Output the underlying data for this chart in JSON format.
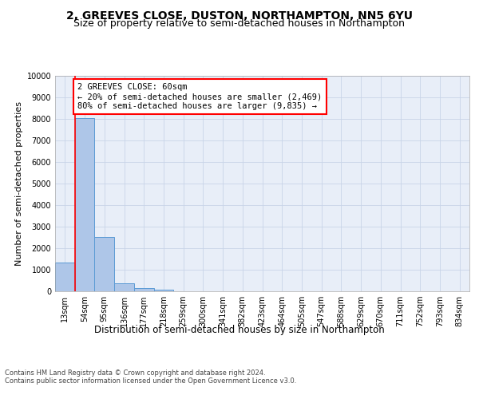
{
  "title": "2, GREEVES CLOSE, DUSTON, NORTHAMPTON, NN5 6YU",
  "subtitle": "Size of property relative to semi-detached houses in Northampton",
  "xlabel_bottom": "Distribution of semi-detached houses by size in Northampton",
  "ylabel": "Number of semi-detached properties",
  "footer1": "Contains HM Land Registry data © Crown copyright and database right 2024.",
  "footer2": "Contains public sector information licensed under the Open Government Licence v3.0.",
  "bar_labels": [
    "13sqm",
    "54sqm",
    "95sqm",
    "136sqm",
    "177sqm",
    "218sqm",
    "259sqm",
    "300sqm",
    "341sqm",
    "382sqm",
    "423sqm",
    "464sqm",
    "505sqm",
    "547sqm",
    "588sqm",
    "629sqm",
    "670sqm",
    "711sqm",
    "752sqm",
    "793sqm",
    "834sqm"
  ],
  "bar_values": [
    1320,
    8020,
    2520,
    380,
    130,
    85,
    0,
    0,
    0,
    0,
    0,
    0,
    0,
    0,
    0,
    0,
    0,
    0,
    0,
    0,
    0
  ],
  "bar_color": "#aec6e8",
  "bar_edge_color": "#5b9bd5",
  "property_line_x": 0.5,
  "annotation_text": "2 GREEVES CLOSE: 60sqm\n← 20% of semi-detached houses are smaller (2,469)\n80% of semi-detached houses are larger (9,835) →",
  "ylim": [
    0,
    10000
  ],
  "yticks": [
    0,
    1000,
    2000,
    3000,
    4000,
    5000,
    6000,
    7000,
    8000,
    9000,
    10000
  ],
  "grid_color": "#c8d4e8",
  "axes_bg_color": "#e8eef8",
  "title_fontsize": 10,
  "subtitle_fontsize": 9,
  "annotation_fontsize": 7.5,
  "ylabel_fontsize": 8,
  "tick_fontsize": 7,
  "xlabel_fontsize": 8.5,
  "footer_fontsize": 6
}
